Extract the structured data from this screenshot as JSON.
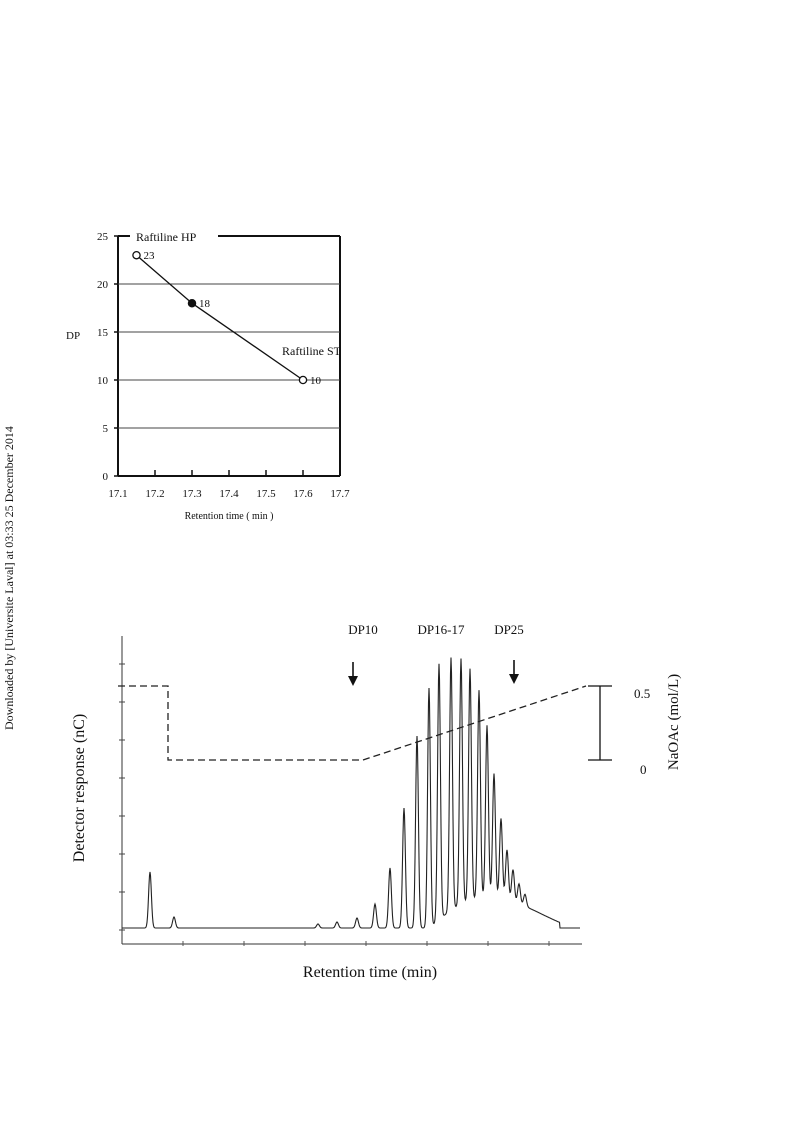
{
  "side_note": "Downloaded by [Universite Laval] at 03:33 25 December 2014",
  "chart_data": [
    {
      "type": "line",
      "ylabel": "DP",
      "xlabel": "Retention time ( min )",
      "xlim": [
        17.1,
        17.7
      ],
      "ylim": [
        0,
        25
      ],
      "x_ticks": [
        "17.1",
        "17.2",
        "17.3",
        "17.4",
        "17.5",
        "17.6",
        "17.7"
      ],
      "y_ticks": [
        "0",
        "5",
        "10",
        "15",
        "20",
        "25"
      ],
      "grid": "horizontal",
      "points": [
        {
          "x": 17.15,
          "y": 23,
          "label": "23",
          "marker": "open"
        },
        {
          "x": 17.3,
          "y": 18,
          "label": "18",
          "marker": "filled"
        },
        {
          "x": 17.6,
          "y": 10,
          "label": "10",
          "marker": "open"
        }
      ],
      "annotations": [
        "Raftiline HP",
        "Raftiline ST"
      ]
    },
    {
      "type": "line",
      "ylabel": "Detector response (nC)",
      "xlabel": "Retention time (min)",
      "y2label": "NaOAc (mol/L)",
      "y2_ticks": [
        "0.5",
        "0"
      ],
      "peak_labels": [
        "DP10",
        "DP16-17",
        "DP25"
      ],
      "series": [
        {
          "values": [
            0.5,
            0.5,
            0,
            0,
            0.5
          ]
        }
      ]
    }
  ]
}
